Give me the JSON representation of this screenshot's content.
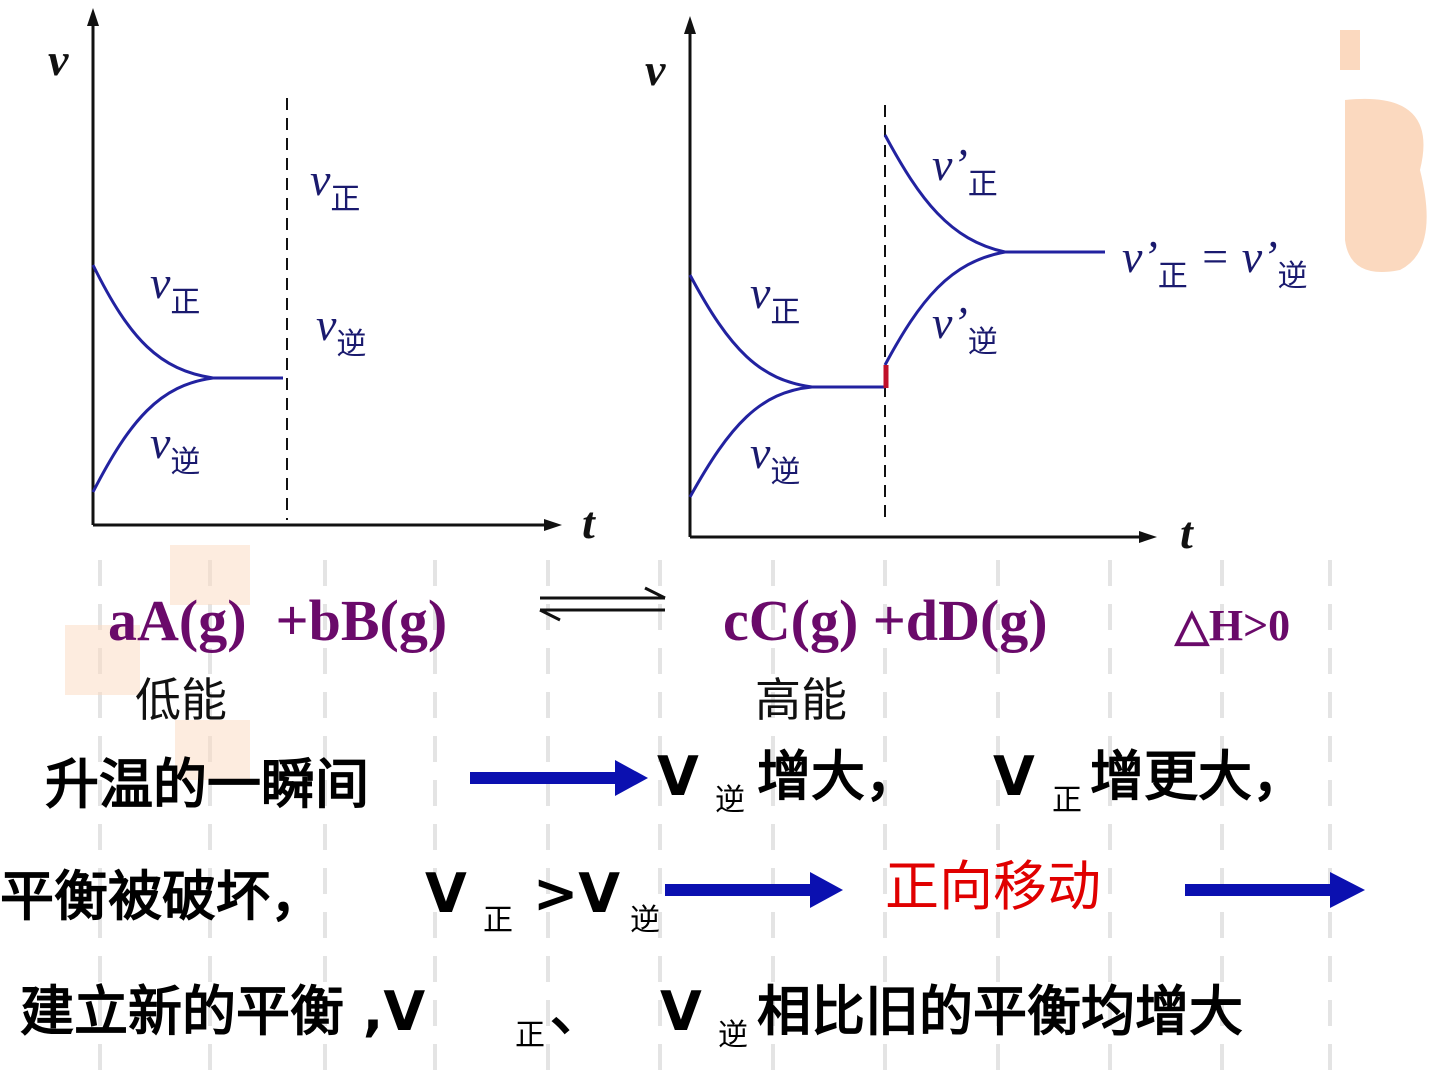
{
  "graphs": [
    {
      "y_axis_label": "v",
      "x_axis_label": "t",
      "labels": [
        {
          "main": "v",
          "sub": "正"
        },
        {
          "main": "v",
          "sub": "正"
        },
        {
          "main": "v",
          "sub": "逆"
        },
        {
          "main": "v",
          "sub": "逆"
        }
      ]
    },
    {
      "y_axis_label": "v",
      "x_axis_label": "t",
      "labels": [
        {
          "main": "v",
          "sub": "正"
        },
        {
          "main": "v",
          "sub": "逆"
        },
        {
          "main": "v’",
          "sub": "正"
        },
        {
          "main": "v’",
          "sub": "逆"
        }
      ],
      "equilibrium_label": [
        "v’",
        "正",
        " = v’",
        "逆"
      ]
    }
  ],
  "equation": {
    "reactants": "aA(g)  +bB(g)",
    "products": "cC(g) +dD(g)",
    "enthalpy": "△H>0",
    "reactant_note": "低能",
    "product_note": "高能"
  },
  "lines": [
    [
      "升温的一瞬间",
      "V",
      "逆",
      "增大，",
      "V",
      "正",
      "增更大，"
    ],
    [
      "平衡被破坏，",
      "V",
      "正",
      ">V",
      "逆",
      "正向移动"
    ],
    [
      "建立新的平衡 ,V",
      "正",
      "、",
      "V",
      "逆",
      "相比旧的平衡均增大"
    ]
  ]
}
